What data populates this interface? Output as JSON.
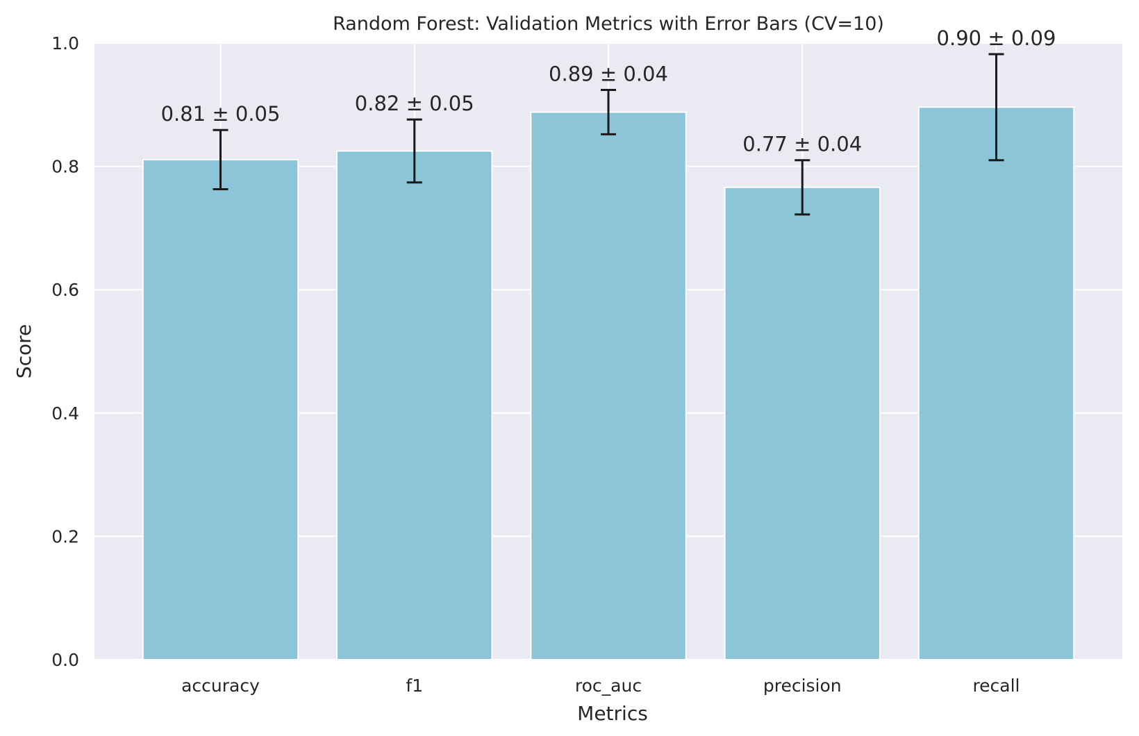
{
  "chart_data": {
    "type": "bar",
    "title": "Random Forest: Validation Metrics with Error Bars (CV=10)",
    "xlabel": "Metrics",
    "ylabel": "Score",
    "ylim": [
      0,
      1.0
    ],
    "yticks": [
      0.0,
      0.2,
      0.4,
      0.6,
      0.8,
      1.0
    ],
    "ytick_labels": [
      "0.0",
      "0.2",
      "0.4",
      "0.6",
      "0.8",
      "1.0"
    ],
    "grid": true,
    "categories": [
      "accuracy",
      "f1",
      "roc_auc",
      "precision",
      "recall"
    ],
    "values": [
      0.811,
      0.825,
      0.888,
      0.766,
      0.896
    ],
    "errors": [
      0.048,
      0.051,
      0.036,
      0.044,
      0.086
    ],
    "data_labels": [
      "0.81 ± 0.05",
      "0.82 ± 0.05",
      "0.89 ± 0.04",
      "0.77 ± 0.04",
      "0.90 ± 0.09"
    ],
    "colors": {
      "bar": "#8cc4d8",
      "plot_background": "#eaeaf2",
      "grid": "#ffffff",
      "error_bar": "#1a1a1a",
      "text": "#262626"
    }
  }
}
